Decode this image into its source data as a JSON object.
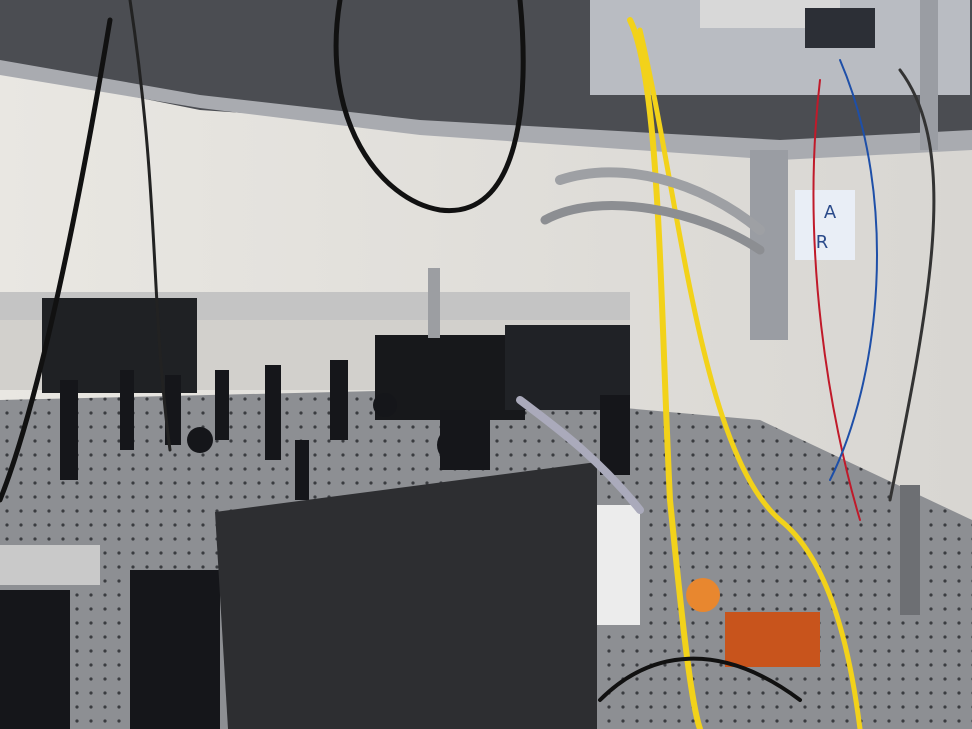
{
  "sign": {
    "letters": [
      "A",
      "R"
    ]
  }
}
